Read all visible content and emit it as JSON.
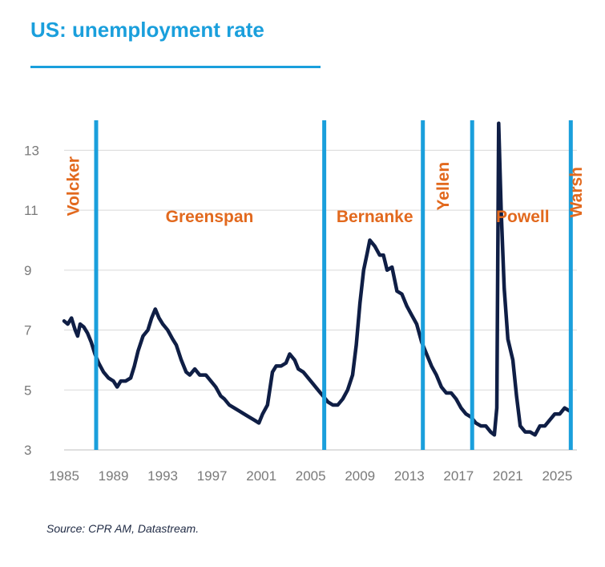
{
  "title": "US: unemployment rate",
  "source": "Source: CPR AM, Datastream.",
  "colors": {
    "title": "#1a9fdc",
    "line": "#0f1e45",
    "markers": "#1a9fdc",
    "labels": "#e2691e",
    "ticks": "#7a7a7a",
    "grid": "#d9d9d9"
  },
  "chart_data": {
    "type": "line",
    "title": "US: unemployment rate",
    "xlabel": "",
    "ylabel": "",
    "xlim": [
      1985,
      2026.6
    ],
    "ylim": [
      3,
      14
    ],
    "x_ticks": [
      "1985",
      "1989",
      "1993",
      "1997",
      "2001",
      "2005",
      "2009",
      "2013",
      "2017",
      "2021",
      "2025"
    ],
    "y_ticks": [
      "3",
      "5",
      "7",
      "9",
      "11",
      "13"
    ],
    "grid": "horizontal",
    "series": [
      {
        "values": [
          [
            1985.0,
            7.3
          ],
          [
            1985.3,
            7.2
          ],
          [
            1985.6,
            7.4
          ],
          [
            1985.9,
            7.0
          ],
          [
            1986.1,
            6.8
          ],
          [
            1986.3,
            7.2
          ],
          [
            1986.6,
            7.1
          ],
          [
            1986.9,
            6.9
          ],
          [
            1987.2,
            6.6
          ],
          [
            1987.5,
            6.2
          ],
          [
            1987.8,
            5.9
          ],
          [
            1988.2,
            5.6
          ],
          [
            1988.6,
            5.4
          ],
          [
            1989.0,
            5.3
          ],
          [
            1989.3,
            5.1
          ],
          [
            1989.6,
            5.3
          ],
          [
            1990.0,
            5.3
          ],
          [
            1990.4,
            5.4
          ],
          [
            1990.7,
            5.8
          ],
          [
            1991.0,
            6.3
          ],
          [
            1991.4,
            6.8
          ],
          [
            1991.8,
            7.0
          ],
          [
            1992.1,
            7.4
          ],
          [
            1992.4,
            7.7
          ],
          [
            1992.7,
            7.4
          ],
          [
            1993.0,
            7.2
          ],
          [
            1993.4,
            7.0
          ],
          [
            1993.8,
            6.7
          ],
          [
            1994.1,
            6.5
          ],
          [
            1994.5,
            6.0
          ],
          [
            1994.9,
            5.6
          ],
          [
            1995.2,
            5.5
          ],
          [
            1995.6,
            5.7
          ],
          [
            1996.0,
            5.5
          ],
          [
            1996.5,
            5.5
          ],
          [
            1996.9,
            5.3
          ],
          [
            1997.3,
            5.1
          ],
          [
            1997.7,
            4.8
          ],
          [
            1998.0,
            4.7
          ],
          [
            1998.4,
            4.5
          ],
          [
            1998.8,
            4.4
          ],
          [
            1999.2,
            4.3
          ],
          [
            1999.6,
            4.2
          ],
          [
            2000.0,
            4.1
          ],
          [
            2000.4,
            4.0
          ],
          [
            2000.8,
            3.9
          ],
          [
            2001.1,
            4.2
          ],
          [
            2001.5,
            4.5
          ],
          [
            2001.9,
            5.6
          ],
          [
            2002.2,
            5.8
          ],
          [
            2002.6,
            5.8
          ],
          [
            2003.0,
            5.9
          ],
          [
            2003.3,
            6.2
          ],
          [
            2003.7,
            6.0
          ],
          [
            2004.0,
            5.7
          ],
          [
            2004.4,
            5.6
          ],
          [
            2004.8,
            5.4
          ],
          [
            2005.2,
            5.2
          ],
          [
            2005.6,
            5.0
          ],
          [
            2006.0,
            4.8
          ],
          [
            2006.4,
            4.6
          ],
          [
            2006.8,
            4.5
          ],
          [
            2007.2,
            4.5
          ],
          [
            2007.6,
            4.7
          ],
          [
            2008.0,
            5.0
          ],
          [
            2008.4,
            5.5
          ],
          [
            2008.7,
            6.5
          ],
          [
            2009.0,
            7.9
          ],
          [
            2009.3,
            9.0
          ],
          [
            2009.6,
            9.6
          ],
          [
            2009.8,
            10.0
          ],
          [
            2010.2,
            9.8
          ],
          [
            2010.6,
            9.5
          ],
          [
            2010.9,
            9.5
          ],
          [
            2011.2,
            9.0
          ],
          [
            2011.6,
            9.1
          ],
          [
            2012.0,
            8.3
          ],
          [
            2012.4,
            8.2
          ],
          [
            2012.8,
            7.8
          ],
          [
            2013.2,
            7.5
          ],
          [
            2013.6,
            7.2
          ],
          [
            2014.0,
            6.6
          ],
          [
            2014.4,
            6.2
          ],
          [
            2014.8,
            5.8
          ],
          [
            2015.2,
            5.5
          ],
          [
            2015.6,
            5.1
          ],
          [
            2016.0,
            4.9
          ],
          [
            2016.4,
            4.9
          ],
          [
            2016.8,
            4.7
          ],
          [
            2017.2,
            4.4
          ],
          [
            2017.6,
            4.2
          ],
          [
            2018.0,
            4.1
          ],
          [
            2018.4,
            3.9
          ],
          [
            2018.8,
            3.8
          ],
          [
            2019.2,
            3.8
          ],
          [
            2019.6,
            3.6
          ],
          [
            2019.9,
            3.5
          ],
          [
            2020.1,
            4.4
          ],
          [
            2020.25,
            13.9
          ],
          [
            2020.45,
            11.0
          ],
          [
            2020.7,
            8.4
          ],
          [
            2021.0,
            6.7
          ],
          [
            2021.4,
            6.0
          ],
          [
            2021.7,
            4.8
          ],
          [
            2022.0,
            3.8
          ],
          [
            2022.4,
            3.6
          ],
          [
            2022.8,
            3.6
          ],
          [
            2023.2,
            3.5
          ],
          [
            2023.6,
            3.8
          ],
          [
            2024.0,
            3.8
          ],
          [
            2024.4,
            4.0
          ],
          [
            2024.8,
            4.2
          ],
          [
            2025.2,
            4.2
          ],
          [
            2025.6,
            4.4
          ],
          [
            2026.0,
            4.3
          ]
        ]
      }
    ],
    "markers": [
      1987.6,
      2006.1,
      2014.1,
      2018.1,
      2026.1
    ],
    "annotations": [
      {
        "text": "Volcker",
        "x": 1986.2,
        "y": 11.8,
        "rotate": true
      },
      {
        "text": "Greenspan",
        "x": 1996.8,
        "y": 10.6,
        "rotate": false
      },
      {
        "text": "Bernanke",
        "x": 2010.2,
        "y": 10.6,
        "rotate": false
      },
      {
        "text": "Yellen",
        "x": 2016.2,
        "y": 11.8,
        "rotate": true
      },
      {
        "text": "Powell",
        "x": 2022.2,
        "y": 10.6,
        "rotate": false
      },
      {
        "text": "Warsh",
        "x": 2027.0,
        "y": 11.6,
        "rotate": true
      }
    ]
  }
}
